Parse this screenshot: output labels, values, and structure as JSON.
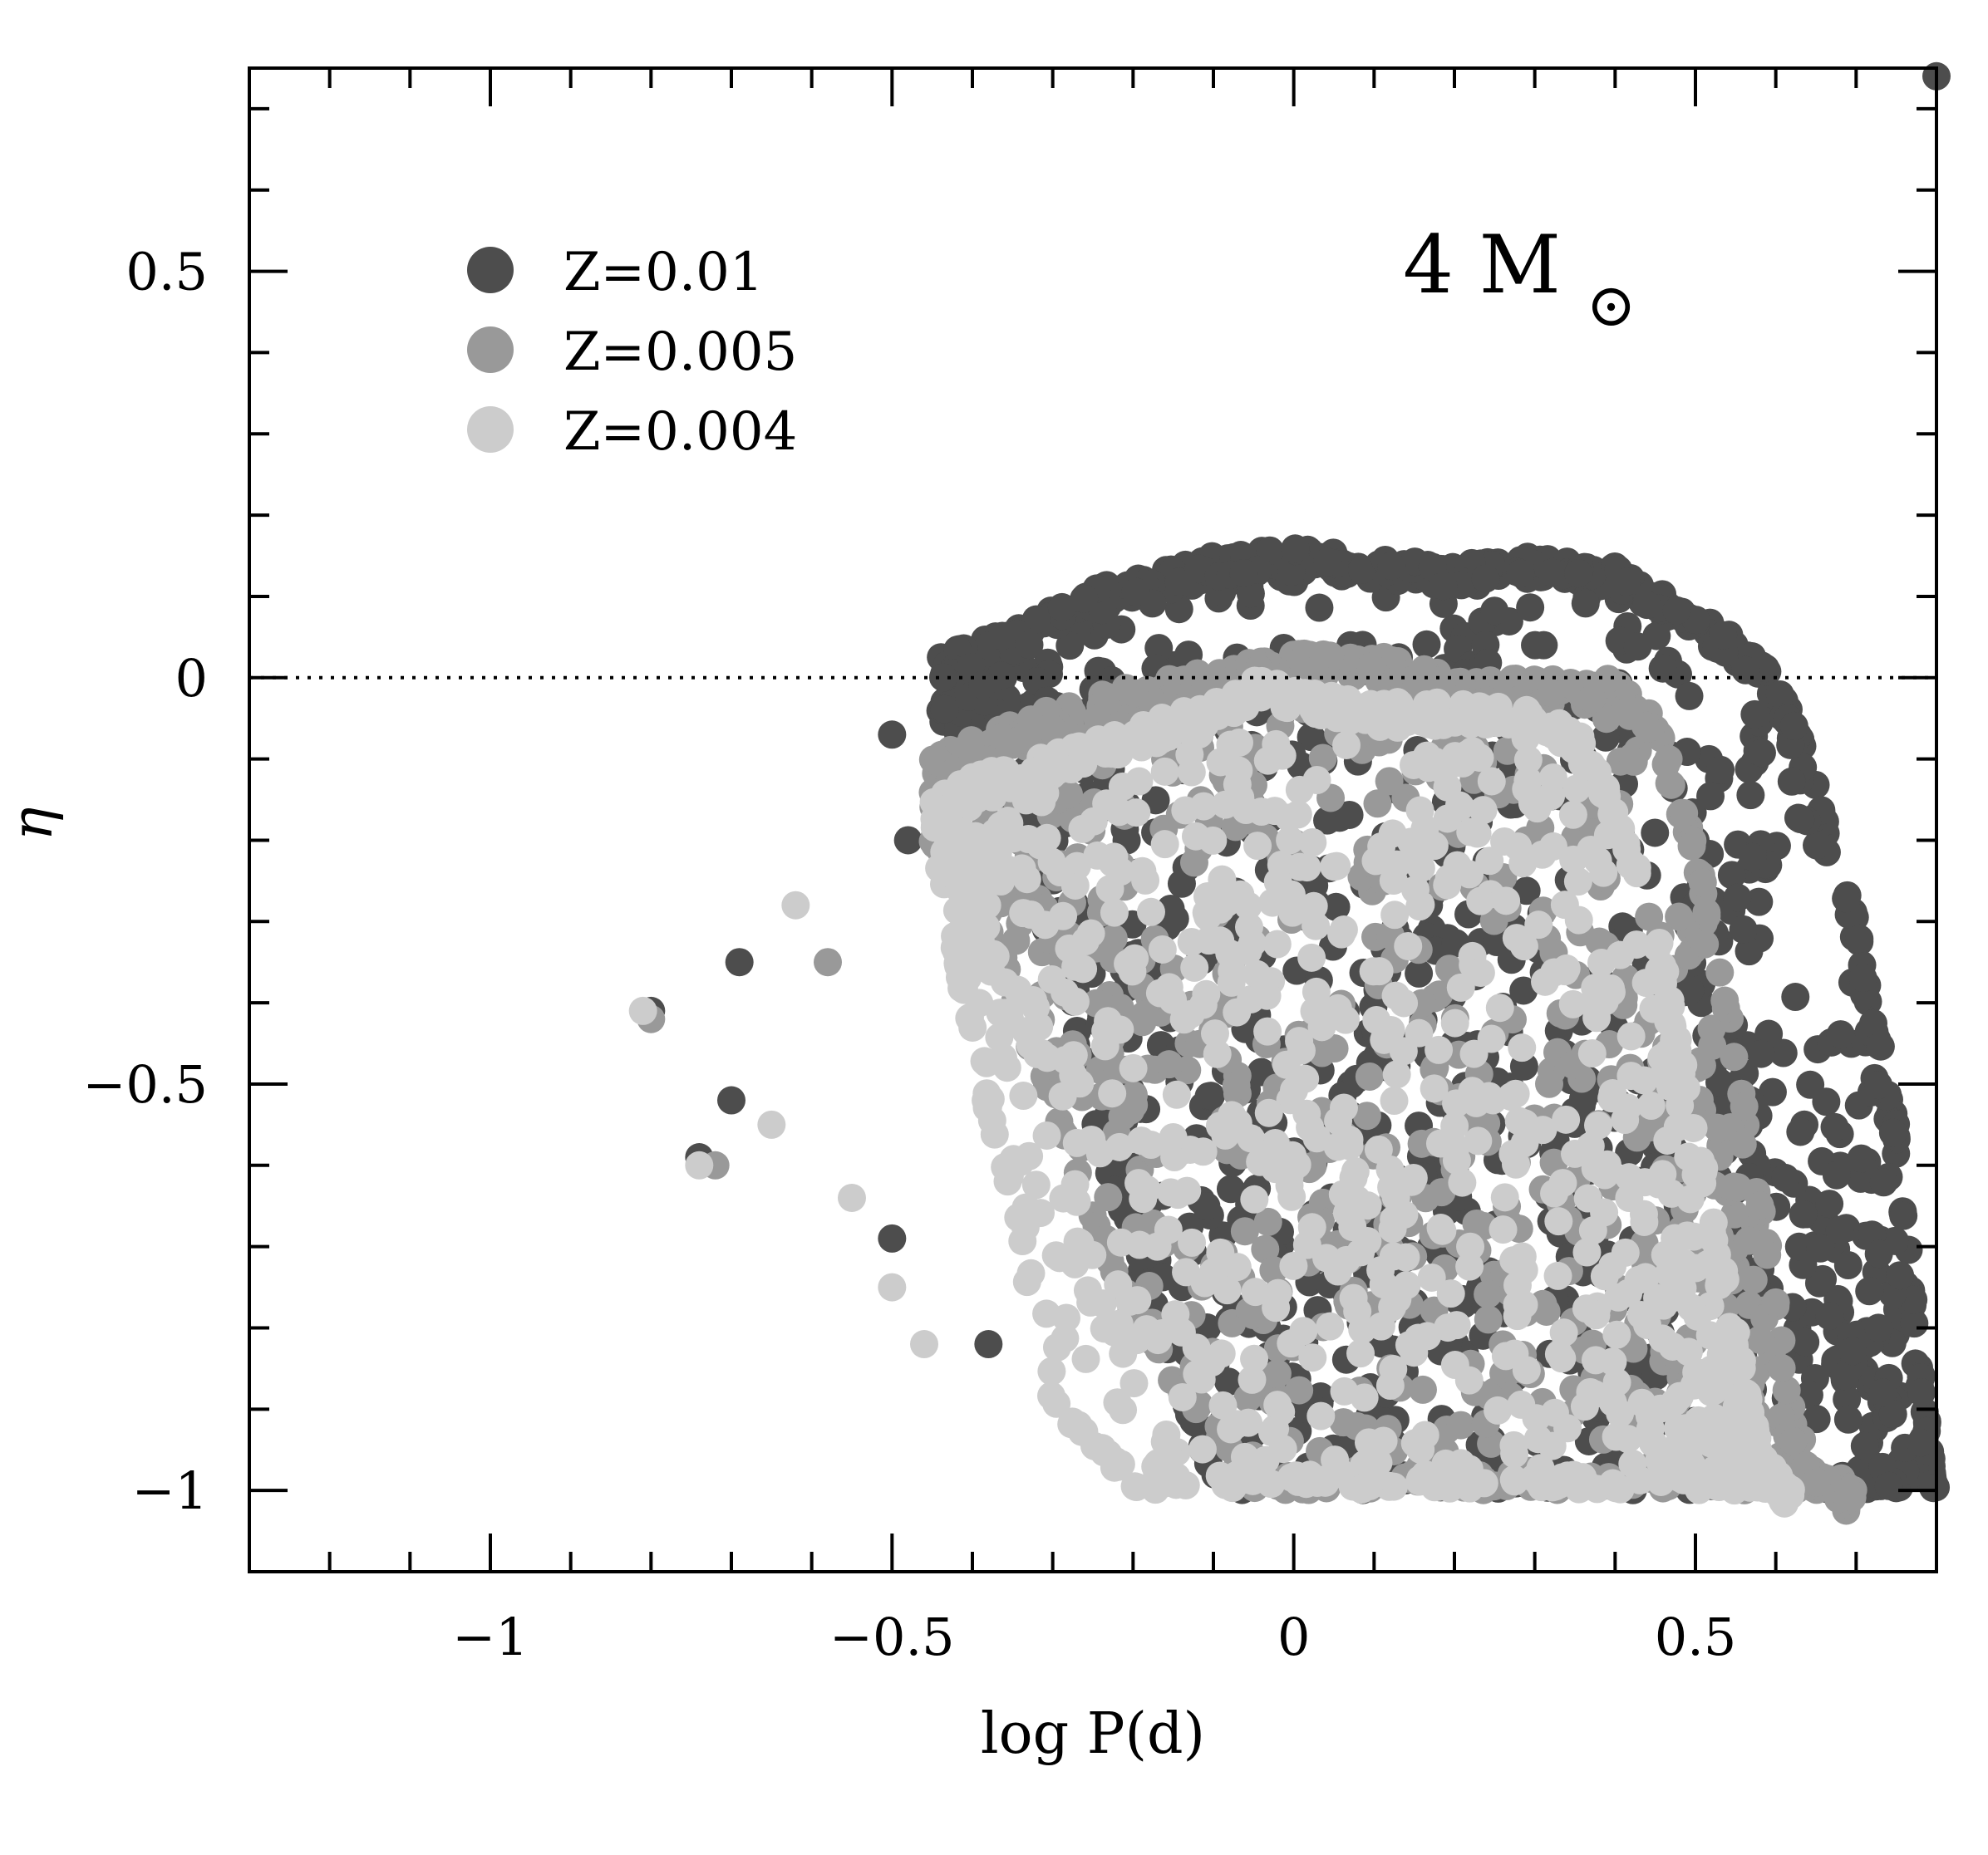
{
  "chart_data": {
    "type": "scatter",
    "title": "",
    "xlabel": "log P(d)",
    "ylabel": "η",
    "xlim": [
      -1.3,
      0.8
    ],
    "ylim": [
      -1.1,
      0.75
    ],
    "xticks": [
      {
        "value": -1,
        "label": "−1"
      },
      {
        "value": -0.5,
        "label": "−0.5"
      },
      {
        "value": 0,
        "label": "0"
      },
      {
        "value": 0.5,
        "label": "0.5"
      }
    ],
    "yticks": [
      {
        "value": 0.5,
        "label": "0.5"
      },
      {
        "value": 0,
        "label": "0"
      },
      {
        "value": -0.5,
        "label": "−0.5"
      },
      {
        "value": -1,
        "label": "−1"
      }
    ],
    "reference_line": {
      "y": 0,
      "style": "dotted"
    },
    "annotation": {
      "text": "4 M",
      "subscript": "⊙"
    },
    "legend_position": "top-left",
    "series": [
      {
        "name": "Z=0.01",
        "color": "#4d4d4d",
        "envelope": {
          "x": [
            -0.44,
            -0.35,
            -0.25,
            -0.1,
            0.0,
            0.1,
            0.2,
            0.3,
            0.4,
            0.5,
            0.55,
            0.6,
            0.65,
            0.7,
            0.75,
            0.78,
            0.8
          ],
          "ymax": [
            0.03,
            0.06,
            0.11,
            0.15,
            0.16,
            0.15,
            0.14,
            0.15,
            0.14,
            0.08,
            0.05,
            0.0,
            -0.12,
            -0.3,
            -0.55,
            -0.85,
            -1.0
          ],
          "ymin": [
            -0.05,
            -0.15,
            -0.55,
            -1.0,
            -1.0,
            -1.0,
            -1.0,
            -1.0,
            -1.0,
            -1.0,
            -1.0,
            -1.0,
            -1.0,
            -1.0,
            -1.0,
            -1.0,
            -1.0
          ]
        },
        "outliers": [
          {
            "x": -0.8,
            "y": -0.41
          },
          {
            "x": -0.74,
            "y": -0.59
          },
          {
            "x": -0.7,
            "y": -0.52
          },
          {
            "x": -0.69,
            "y": -0.35
          },
          {
            "x": -0.5,
            "y": -0.07
          },
          {
            "x": -0.48,
            "y": -0.2
          },
          {
            "x": -0.5,
            "y": -0.69
          },
          {
            "x": -0.38,
            "y": -0.82
          },
          {
            "x": 0.8,
            "y": 0.74
          }
        ]
      },
      {
        "name": "Z=0.005",
        "color": "#999999",
        "envelope": {
          "x": [
            -0.45,
            -0.35,
            -0.2,
            -0.05,
            0.0,
            0.1,
            0.2,
            0.3,
            0.4,
            0.45,
            0.5,
            0.55,
            0.6,
            0.62,
            0.65,
            0.7
          ],
          "ymax": [
            -0.1,
            -0.05,
            -0.01,
            0.02,
            0.03,
            0.03,
            0.0,
            0.0,
            0.0,
            -0.05,
            -0.2,
            -0.45,
            -0.75,
            -0.9,
            -0.98,
            -1.0
          ],
          "ymin": [
            -0.2,
            -0.4,
            -0.8,
            -1.0,
            -1.0,
            -1.0,
            -1.0,
            -1.0,
            -1.0,
            -1.0,
            -1.0,
            -1.0,
            -1.0,
            -1.0,
            -1.0,
            -1.0
          ]
        },
        "outliers": [
          {
            "x": -0.8,
            "y": -0.42
          },
          {
            "x": -0.72,
            "y": -0.6
          },
          {
            "x": -0.58,
            "y": -0.35
          }
        ]
      },
      {
        "name": "Z=0.004",
        "color": "#cccccc",
        "envelope": {
          "x": [
            -0.45,
            -0.4,
            -0.3,
            -0.2,
            -0.1,
            -0.05,
            0.0,
            0.1,
            0.2,
            0.3,
            0.35,
            0.4,
            0.45,
            0.5,
            0.55,
            0.58,
            0.62,
            0.7
          ],
          "ymax": [
            -0.15,
            -0.12,
            -0.09,
            -0.06,
            -0.03,
            0.0,
            -0.01,
            -0.03,
            -0.03,
            -0.04,
            -0.06,
            -0.15,
            -0.3,
            -0.55,
            -0.8,
            -0.95,
            -1.0,
            -1.0
          ],
          "ymin": [
            -0.2,
            -0.45,
            -0.9,
            -1.0,
            -1.0,
            -1.0,
            -1.0,
            -1.0,
            -1.0,
            -1.0,
            -1.0,
            -1.0,
            -1.0,
            -1.0,
            -1.0,
            -1.0,
            -1.0,
            -1.0
          ]
        },
        "outliers": [
          {
            "x": -0.81,
            "y": -0.41
          },
          {
            "x": -0.74,
            "y": -0.6
          },
          {
            "x": -0.65,
            "y": -0.55
          },
          {
            "x": -0.62,
            "y": -0.28
          },
          {
            "x": -0.55,
            "y": -0.64
          },
          {
            "x": -0.5,
            "y": -0.75
          },
          {
            "x": -0.46,
            "y": -0.82
          }
        ]
      }
    ]
  }
}
